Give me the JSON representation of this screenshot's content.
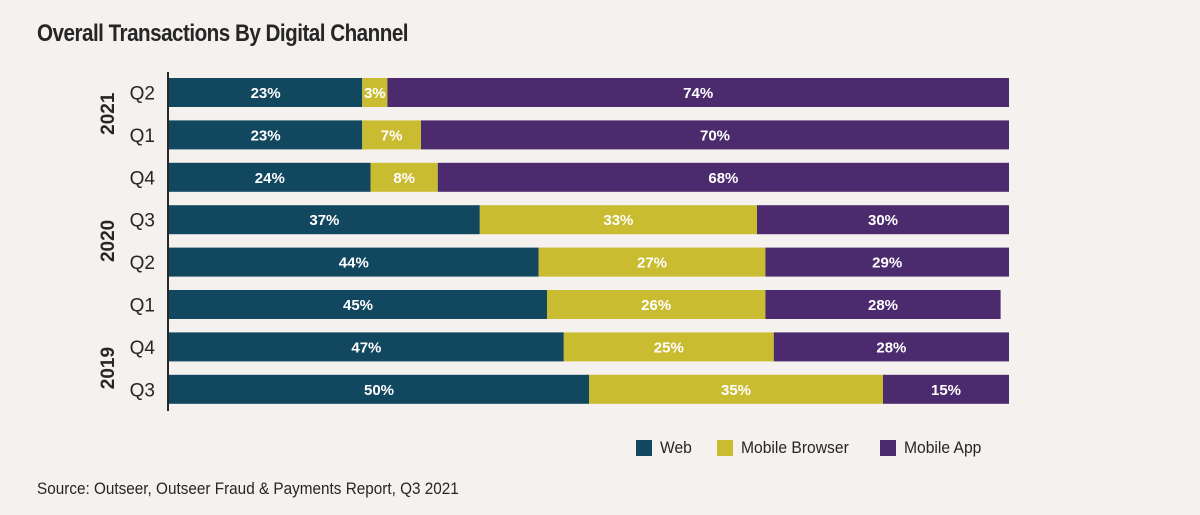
{
  "chart_data": {
    "type": "bar",
    "orientation": "horizontal",
    "stacked": true,
    "title": "Overall Transactions By Digital Channel",
    "xlabel": "",
    "ylabel": "",
    "xlim": [
      0,
      100
    ],
    "grid": false,
    "legend_position": "bottom-right",
    "categories": [
      {
        "quarter": "Q2",
        "year": "2021"
      },
      {
        "quarter": "Q1",
        "year": "2021"
      },
      {
        "quarter": "Q4",
        "year": "2020"
      },
      {
        "quarter": "Q3",
        "year": "2020"
      },
      {
        "quarter": "Q2",
        "year": "2020"
      },
      {
        "quarter": "Q1",
        "year": "2020"
      },
      {
        "quarter": "Q4",
        "year": "2019"
      },
      {
        "quarter": "Q3",
        "year": "2019"
      }
    ],
    "year_groups": [
      {
        "label": "2021",
        "rows": [
          0,
          1
        ]
      },
      {
        "label": "2020",
        "rows": [
          2,
          3,
          4,
          5
        ]
      },
      {
        "label": "2019",
        "rows": [
          6,
          7
        ]
      }
    ],
    "series": [
      {
        "name": "Web",
        "color": "#12485f",
        "values": [
          23,
          23,
          24,
          37,
          44,
          45,
          47,
          50
        ]
      },
      {
        "name": "Mobile Browser",
        "color": "#c9bc30",
        "values": [
          3,
          7,
          8,
          33,
          27,
          26,
          25,
          35
        ]
      },
      {
        "name": "Mobile App",
        "color": "#4b2b6e",
        "values": [
          74,
          70,
          68,
          30,
          29,
          28,
          28,
          15
        ]
      }
    ],
    "value_suffix": "%"
  },
  "legend": [
    {
      "label": "Web",
      "color": "#12485f"
    },
    {
      "label": "Mobile Browser",
      "color": "#c9bc30"
    },
    {
      "label": "Mobile App",
      "color": "#4b2b6e"
    }
  ],
  "source": "Source: Outseer, Outseer Fraud & Payments Report, Q3 2021"
}
